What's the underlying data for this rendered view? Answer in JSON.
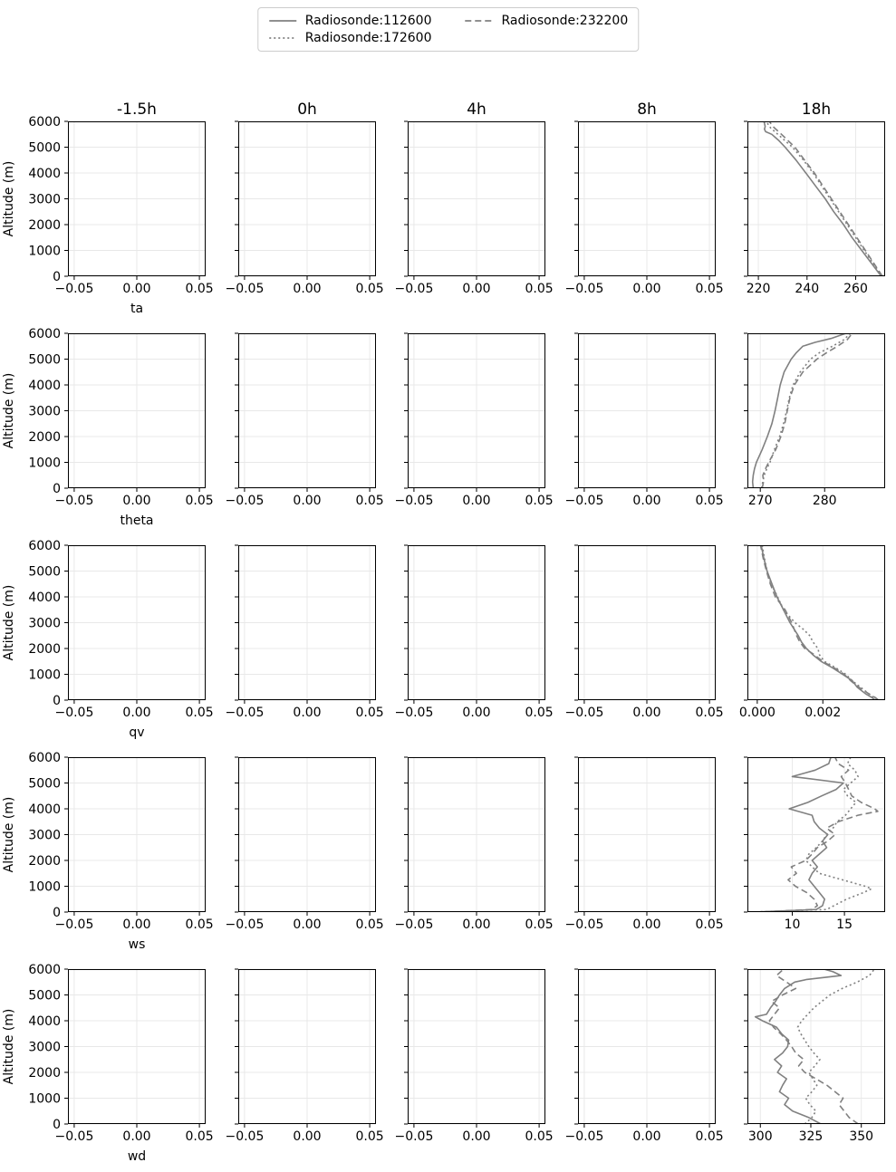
{
  "legend": {
    "entries": [
      {
        "label": "Radiosonde:112600",
        "style": "solid"
      },
      {
        "label": "Radiosonde:172600",
        "style": "dotted"
      },
      {
        "label": "Radiosonde:232200",
        "style": "dashed"
      }
    ]
  },
  "style": {
    "line_color": "#808080",
    "grid_color": "#e8e8e8",
    "axis_color": "#000000",
    "background": "#ffffff"
  },
  "chart_data": {
    "type": "line",
    "grid": true,
    "n_rows": 5,
    "n_cols": 5,
    "column_titles": [
      "-1.5h",
      "0h",
      "4h",
      "8h",
      "18h"
    ],
    "ylabel": "Altitude (m)",
    "ylim": [
      0,
      6000
    ],
    "yticks": [
      0,
      1000,
      2000,
      3000,
      4000,
      5000,
      6000
    ],
    "ytick_labels": [
      "0",
      "1000",
      "2000",
      "3000",
      "4000",
      "5000",
      "6000"
    ],
    "default_empty_xaxis": {
      "xlim": [
        -0.055,
        0.055
      ],
      "xticks": [
        -0.05,
        0.0,
        0.05
      ],
      "xtick_labels": [
        "−0.05",
        "0.00",
        "0.05"
      ],
      "series": []
    },
    "rows": [
      {
        "xlabel": "ta",
        "panel_18h": {
          "xlim": [
            215.5,
            272.1
          ],
          "xticks": [
            220,
            240,
            260
          ],
          "xtick_labels": [
            "220",
            "240",
            "260"
          ],
          "series": [
            {
              "name": "Radiosonde:112600",
              "style": "solid",
              "altitude_m": [
                0,
                500,
                1000,
                1500,
                2000,
                2500,
                3000,
                3500,
                4000,
                4500,
                5000,
                5250,
                5500,
                5600,
                5700,
                5800,
                6000
              ],
              "values": [
                270.5,
                266.5,
                262.5,
                258.5,
                255.0,
                251.0,
                247.5,
                243.5,
                239.5,
                235.5,
                231.0,
                228.5,
                225.5,
                223.0,
                222.5,
                222.8,
                222.3
              ]
            },
            {
              "name": "Radiosonde:172600",
              "style": "dotted",
              "altitude_m": [
                0,
                1000,
                2000,
                3000,
                4000,
                4500,
                5000,
                5250,
                5500,
                5750,
                6000
              ],
              "values": [
                270.8,
                263.5,
                256.5,
                249.5,
                242.5,
                238.5,
                234.0,
                231.0,
                228.0,
                225.0,
                223.2
              ]
            },
            {
              "name": "Radiosonde:232200",
              "style": "dashed",
              "altitude_m": [
                0,
                500,
                1000,
                1500,
                2000,
                2500,
                3000,
                3500,
                4000,
                4500,
                5000,
                5500,
                5800,
                6000
              ],
              "values": [
                271.0,
                267.5,
                264.0,
                260.5,
                257.0,
                253.5,
                250.0,
                246.5,
                243.0,
                239.0,
                235.0,
                229.5,
                226.0,
                224.5
              ]
            }
          ]
        }
      },
      {
        "xlabel": "theta",
        "panel_18h": {
          "xlim": [
            268.0,
            289.4
          ],
          "xticks": [
            270,
            280
          ],
          "xtick_labels": [
            "270",
            "280"
          ],
          "series": [
            {
              "name": "Radiosonde:112600",
              "style": "solid",
              "altitude_m": [
                0,
                250,
                500,
                750,
                1000,
                1500,
                2000,
                2500,
                3000,
                3500,
                4000,
                4500,
                5000,
                5250,
                5500,
                5650,
                5800,
                6000
              ],
              "values": [
                268.9,
                268.8,
                268.9,
                269.1,
                269.4,
                270.3,
                271.1,
                271.8,
                272.3,
                272.7,
                273.1,
                273.7,
                274.8,
                275.6,
                276.6,
                278.5,
                281.0,
                283.3
              ]
            },
            {
              "name": "Radiosonde:172600",
              "style": "dotted",
              "altitude_m": [
                0,
                250,
                500,
                750,
                1000,
                1500,
                2000,
                2500,
                3000,
                3500,
                4000,
                4500,
                5000,
                5250,
                5500,
                5750,
                6000
              ],
              "values": [
                270.2,
                270.4,
                270.6,
                271.0,
                271.5,
                272.2,
                273.0,
                273.6,
                274.1,
                274.5,
                275.1,
                276.2,
                277.8,
                279.2,
                281.2,
                283.0,
                284.0
              ]
            },
            {
              "name": "Radiosonde:232200",
              "style": "dashed",
              "altitude_m": [
                0,
                250,
                500,
                750,
                1000,
                1500,
                2000,
                2500,
                3000,
                3500,
                4000,
                4500,
                5000,
                5250,
                5500,
                5750,
                6000
              ],
              "values": [
                270.3,
                270.5,
                270.4,
                270.8,
                271.3,
                272.4,
                273.2,
                273.8,
                274.2,
                274.6,
                275.3,
                276.6,
                278.8,
                280.3,
                282.0,
                283.5,
                284.3
              ]
            }
          ]
        }
      },
      {
        "xlabel": "qv",
        "panel_18h": {
          "xlim": [
            -0.0003,
            0.0039
          ],
          "xticks": [
            0.0,
            0.002
          ],
          "xtick_labels": [
            "0.000",
            "0.002"
          ],
          "series": [
            {
              "name": "Radiosonde:112600",
              "style": "solid",
              "altitude_m": [
                0,
                100,
                250,
                500,
                750,
                1000,
                1250,
                1500,
                1750,
                2000,
                2250,
                2500,
                3000,
                3500,
                4000,
                4500,
                5000,
                5500,
                6000
              ],
              "values": [
                0.0036,
                0.0035,
                0.0033,
                0.00305,
                0.0029,
                0.0026,
                0.0023,
                0.00195,
                0.0017,
                0.0015,
                0.00135,
                0.00125,
                0.001,
                0.0008,
                0.0006,
                0.00045,
                0.0003,
                0.0002,
                0.00012
              ]
            },
            {
              "name": "Radiosonde:172600",
              "style": "dotted",
              "altitude_m": [
                0,
                250,
                500,
                750,
                1000,
                1250,
                1500,
                1750,
                2000,
                2250,
                2500,
                2750,
                3000,
                3500,
                4000,
                4500,
                5000,
                5500,
                6000
              ],
              "values": [
                0.00365,
                0.0034,
                0.00315,
                0.0029,
                0.0027,
                0.0024,
                0.00205,
                0.0019,
                0.00185,
                0.0017,
                0.0016,
                0.0014,
                0.00115,
                0.0008,
                0.00062,
                0.00042,
                0.0003,
                0.00022,
                0.00015
              ]
            },
            {
              "name": "Radiosonde:232200",
              "style": "dashed",
              "altitude_m": [
                0,
                100,
                250,
                500,
                750,
                1000,
                1250,
                1500,
                1750,
                2000,
                2250,
                2500,
                3000,
                3500,
                4000,
                4500,
                5000,
                5500,
                6000
              ],
              "values": [
                0.0037,
                0.0036,
                0.0034,
                0.0031,
                0.00285,
                0.00265,
                0.00235,
                0.002,
                0.00175,
                0.00145,
                0.0013,
                0.0012,
                0.00105,
                0.00085,
                0.00055,
                0.0004,
                0.00028,
                0.00018,
                0.0001
              ]
            }
          ]
        }
      },
      {
        "xlabel": "ws",
        "panel_18h": {
          "xlim": [
            5.7,
            18.9
          ],
          "xticks": [
            10,
            15
          ],
          "xtick_labels": [
            "10",
            "15"
          ],
          "series": [
            {
              "name": "Radiosonde:112600",
              "style": "solid",
              "altitude_m": [
                0,
                100,
                250,
                500,
                750,
                1000,
                1250,
                1500,
                1750,
                2000,
                2250,
                2500,
                2750,
                3000,
                3250,
                3500,
                3750,
                4000,
                4250,
                4500,
                4750,
                5000,
                5250,
                5500,
                5750,
                6000
              ],
              "values": [
                6.2,
                12.3,
                12.9,
                13.1,
                12.6,
                12.1,
                11.6,
                11.9,
                12.4,
                11.9,
                12.6,
                13.3,
                12.9,
                13.4,
                12.6,
                12.1,
                11.9,
                9.7,
                11.5,
                12.8,
                14.2,
                14.9,
                10.0,
                12.2,
                13.5,
                13.7
              ]
            },
            {
              "name": "Radiosonde:172600",
              "style": "dotted",
              "altitude_m": [
                0,
                100,
                250,
                500,
                750,
                900,
                1000,
                1250,
                1500,
                1750,
                2000,
                2250,
                2500,
                2750,
                3000,
                3250,
                3500,
                3750,
                4000,
                4250,
                4500,
                4750,
                5000,
                5250,
                5500,
                5750,
                6000
              ],
              "values": [
                6.1,
                13.3,
                14.0,
                15.2,
                16.8,
                17.6,
                17.0,
                14.8,
                12.6,
                11.9,
                11.3,
                11.6,
                12.3,
                12.9,
                13.3,
                13.9,
                14.3,
                15.1,
                15.6,
                16.1,
                15.3,
                14.9,
                15.6,
                16.3,
                16.0,
                15.3,
                15.6
              ]
            },
            {
              "name": "Radiosonde:232200",
              "style": "dashed",
              "altitude_m": [
                0,
                100,
                250,
                500,
                750,
                1000,
                1250,
                1500,
                1750,
                2000,
                2250,
                2500,
                2750,
                3000,
                3250,
                3500,
                3750,
                3900,
                4000,
                4250,
                4500,
                4750,
                5000,
                5250,
                5500,
                5750,
                6000
              ],
              "values": [
                6.5,
                11.9,
                12.4,
                12.1,
                11.4,
                10.3,
                9.6,
                10.4,
                9.9,
                11.3,
                11.9,
                12.4,
                13.4,
                14.1,
                13.3,
                14.4,
                16.3,
                18.2,
                17.9,
                16.6,
                15.7,
                15.4,
                15.1,
                14.7,
                15.4,
                14.4,
                14.1
              ]
            }
          ]
        }
      },
      {
        "xlabel": "wd",
        "panel_18h": {
          "xlim": [
            293.6,
            361.8
          ],
          "xticks": [
            300,
            325,
            350
          ],
          "xtick_labels": [
            "300",
            "325",
            "350"
          ],
          "series": [
            {
              "name": "Radiosonde:112600",
              "style": "solid",
              "altitude_m": [
                0,
                250,
                500,
                750,
                1000,
                1250,
                1500,
                1750,
                2000,
                2250,
                2500,
                2750,
                3000,
                3250,
                3500,
                3750,
                4000,
                4150,
                4250,
                4500,
                4750,
                5000,
                5250,
                5500,
                5600,
                5750,
                5900,
                6000
              ],
              "values": [
                330.0,
                324.0,
                316.0,
                312.0,
                314.0,
                309.5,
                311.0,
                313.0,
                308.5,
                310.5,
                307.0,
                311.0,
                313.5,
                314.0,
                310.5,
                308.0,
                301.0,
                297.5,
                303.0,
                305.0,
                307.5,
                309.5,
                312.0,
                317.0,
                323.0,
                340.0,
                336.0,
                331.5
              ]
            },
            {
              "name": "Radiosonde:172600",
              "style": "dotted",
              "altitude_m": [
                0,
                250,
                500,
                750,
                1000,
                1250,
                1500,
                1750,
                2000,
                2250,
                2500,
                2750,
                3000,
                3250,
                3500,
                3750,
                4000,
                4250,
                4500,
                4750,
                5000,
                5250,
                5500,
                5750,
                6000
              ],
              "values": [
                322.0,
                325.5,
                327.5,
                324.5,
                322.5,
                325.5,
                328.0,
                326.0,
                324.0,
                327.0,
                329.5,
                326.5,
                324.0,
                322.0,
                320.0,
                318.5,
                320.5,
                323.5,
                326.5,
                330.5,
                334.5,
                340.5,
                348.0,
                354.0,
                356.5
              ]
            },
            {
              "name": "Radiosonde:232200",
              "style": "dashed",
              "altitude_m": [
                0,
                250,
                500,
                750,
                1000,
                1250,
                1500,
                1750,
                2000,
                2250,
                2500,
                2750,
                3000,
                3250,
                3500,
                3750,
                4000,
                4250,
                4500,
                4750,
                5000,
                5250,
                5500,
                5750,
                6000
              ],
              "values": [
                348.5,
                344.0,
                341.5,
                339.0,
                341.0,
                337.0,
                333.0,
                327.5,
                322.0,
                319.0,
                321.5,
                317.5,
                315.5,
                313.0,
                310.0,
                306.5,
                304.5,
                307.0,
                309.5,
                305.5,
                311.0,
                317.5,
                313.0,
                308.0,
                311.5
              ]
            }
          ]
        }
      }
    ]
  }
}
